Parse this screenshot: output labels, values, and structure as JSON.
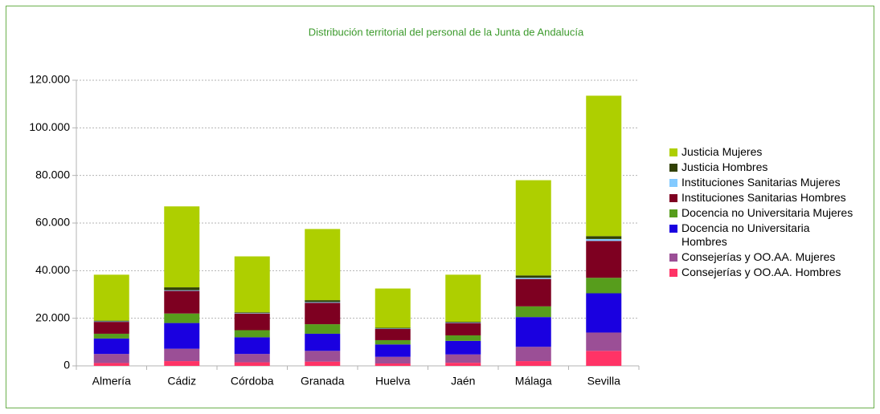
{
  "chart_data": {
    "type": "bar",
    "stacked": true,
    "title": "Distribución territorial del personal de la Junta de Andalucía",
    "categories": [
      "Almería",
      "Cádiz",
      "Córdoba",
      "Granada",
      "Huelva",
      "Jaén",
      "Málaga",
      "Sevilla"
    ],
    "series": [
      {
        "name": "Consejerías y OO.AA. Hombres",
        "color": "#ff3366",
        "values": [
          1200,
          2000,
          1500,
          1800,
          1000,
          1300,
          2000,
          6300
        ]
      },
      {
        "name": "Consejerías y OO.AA. Mujeres",
        "color": "#9b4f96",
        "values": [
          3800,
          5200,
          3500,
          4500,
          2800,
          3500,
          6000,
          7700
        ]
      },
      {
        "name": "Docencia no Universitaria Hombres",
        "color": "#1a00e0",
        "values": [
          6500,
          10800,
          7000,
          7200,
          5200,
          5700,
          12500,
          16500
        ]
      },
      {
        "name": "Docencia no Universitaria Mujeres",
        "color": "#579d1c",
        "values": [
          2000,
          4000,
          3000,
          4000,
          1800,
          2300,
          4500,
          6500
        ]
      },
      {
        "name": "Instituciones Sanitarias Hombres",
        "color": "#7e0021",
        "values": [
          5000,
          9500,
          7000,
          9000,
          4700,
          5200,
          11500,
          15500
        ]
      },
      {
        "name": "Instituciones Sanitarias Mujeres",
        "color": "#83caff",
        "values": [
          200,
          300,
          200,
          300,
          200,
          200,
          500,
          800
        ]
      },
      {
        "name": "Justicia Hombres",
        "color": "#314004",
        "values": [
          300,
          1200,
          300,
          800,
          300,
          300,
          1000,
          1200
        ]
      },
      {
        "name": "Justicia Mujeres",
        "color": "#aecf00",
        "values": [
          19300,
          34000,
          23500,
          29900,
          16500,
          19800,
          40000,
          59000
        ]
      }
    ],
    "ylim": [
      0,
      120000
    ],
    "yticks": [
      0,
      {
        "value": 20000,
        "label": "20.000"
      },
      {
        "value": 40000,
        "label": "40.000"
      },
      {
        "value": 60000,
        "label": "60.000"
      },
      {
        "value": 80000,
        "label": "80.000"
      },
      {
        "value": 100000,
        "label": "100.000"
      },
      {
        "value": 120000,
        "label": "120.000"
      }
    ],
    "grid": true,
    "legend": "right"
  }
}
